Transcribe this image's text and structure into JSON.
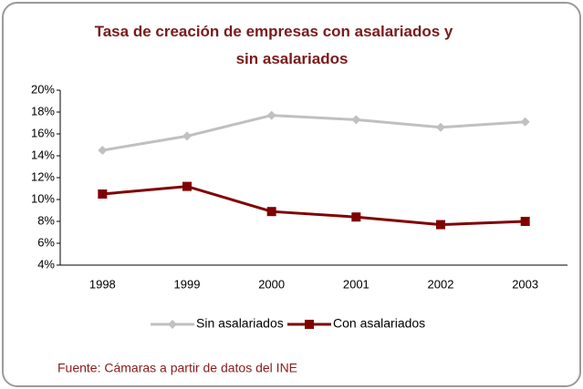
{
  "chart_data": {
    "type": "line",
    "title": "Tasa de creación de empresas con asalariados y sin asalariados",
    "categories": [
      "1998",
      "1999",
      "2000",
      "2001",
      "2002",
      "2003"
    ],
    "series": [
      {
        "name": "Sin asalariados",
        "color": "#c0c0c0",
        "values": [
          14.5,
          15.8,
          17.7,
          17.3,
          16.6,
          17.1
        ]
      },
      {
        "name": "Con asalariados",
        "color": "#800000",
        "values": [
          10.5,
          11.2,
          8.9,
          8.4,
          7.7,
          8.0
        ]
      }
    ],
    "ylim": [
      4,
      20
    ],
    "yticks": [
      {
        "value": 4,
        "label": "4%"
      },
      {
        "value": 6,
        "label": "6%"
      },
      {
        "value": 8,
        "label": "8%"
      },
      {
        "value": 10,
        "label": "10%"
      },
      {
        "value": 12,
        "label": "12%"
      },
      {
        "value": 14,
        "label": "14%"
      },
      {
        "value": 16,
        "label": "16%"
      },
      {
        "value": 18,
        "label": "18%"
      },
      {
        "value": 20,
        "label": "20%"
      }
    ],
    "grid": false,
    "legend": "bottom",
    "source": "Fuente: Cámaras a partir de datos del INE"
  }
}
